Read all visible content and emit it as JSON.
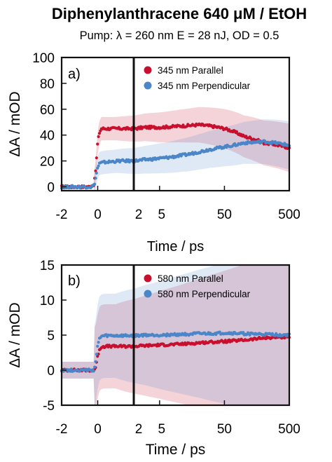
{
  "figure": {
    "title": "Diphenylanthracene 640 μM / EtOH",
    "subtitle": "Pump: λ = 260 nm E = 28 nJ, OD = 0.5"
  },
  "chart_data": [
    {
      "type": "scatter",
      "panel_label": "a)",
      "xlabel": "Time / ps",
      "ylabel": "ΔA / mOD",
      "x_axis": "piecewise: linear from -2 to 2 ps, logarithmic from 2 to 500 ps",
      "x_ticks": [
        "-2",
        "0",
        "2",
        "5",
        "50",
        "500"
      ],
      "y_ticks": [
        "0",
        "20",
        "40",
        "60",
        "80",
        "100"
      ],
      "ylim": [
        -3,
        100
      ],
      "xlim": [
        -2,
        500
      ],
      "grid": false,
      "legend_position": "top-right",
      "colors": {
        "parallel": "#c8102e",
        "perpendicular": "#4a86c8"
      },
      "series": [
        {
          "name": "345 nm Parallel",
          "color": "#c8102e",
          "x": [
            -2,
            -1,
            -0.4,
            -0.2,
            -0.1,
            0,
            0.1,
            0.2,
            0.4,
            0.8,
            1.2,
            2,
            3,
            5,
            10,
            20,
            30,
            50,
            100,
            200,
            500
          ],
          "y": [
            0,
            0,
            0,
            2,
            15,
            35,
            42,
            45,
            45,
            45,
            45,
            45,
            46,
            46,
            47,
            48,
            47,
            45,
            39,
            34,
            30
          ]
        },
        {
          "name": "345 nm Perpendicular",
          "color": "#4a86c8",
          "x": [
            -2,
            -1,
            -0.4,
            -0.2,
            -0.1,
            0,
            0.1,
            0.2,
            0.4,
            0.8,
            1.2,
            2,
            3,
            5,
            10,
            20,
            30,
            50,
            100,
            200,
            500
          ],
          "y": [
            0,
            0,
            0,
            1,
            8,
            15,
            18,
            18.5,
            19,
            19.5,
            20,
            20,
            21,
            22,
            24,
            27,
            29,
            31,
            34,
            35,
            32
          ]
        }
      ]
    },
    {
      "type": "scatter",
      "panel_label": "b)",
      "xlabel": "Time / ps",
      "ylabel": "ΔA / mOD",
      "x_axis": "piecewise: linear from -2 to 2 ps, logarithmic from 2 to 500 ps",
      "x_ticks": [
        "-2",
        "0",
        "2",
        "5",
        "50",
        "500"
      ],
      "y_ticks": [
        "-5",
        "0",
        "5",
        "10",
        "15"
      ],
      "ylim": [
        -5,
        15
      ],
      "xlim": [
        -2,
        500
      ],
      "grid": false,
      "legend_position": "top-right",
      "colors": {
        "parallel": "#c8102e",
        "perpendicular": "#4a86c8"
      },
      "series": [
        {
          "name": "580 nm Parallel",
          "color": "#c8102e",
          "x": [
            -2,
            -1,
            -0.4,
            -0.2,
            -0.1,
            0,
            0.1,
            0.2,
            0.4,
            0.8,
            1.2,
            2,
            3,
            5,
            10,
            20,
            30,
            50,
            100,
            200,
            500
          ],
          "y": [
            0,
            0,
            0,
            0,
            0.5,
            2,
            3,
            3.3,
            3.4,
            3.4,
            3.4,
            3.4,
            3.5,
            3.6,
            3.7,
            3.9,
            4.0,
            4.1,
            4.3,
            4.6,
            4.8
          ]
        },
        {
          "name": "580 nm Perpendicular",
          "color": "#4a86c8",
          "x": [
            -2,
            -1,
            -0.4,
            -0.2,
            -0.1,
            0,
            0.1,
            0.2,
            0.4,
            0.8,
            1.2,
            2,
            3,
            5,
            10,
            20,
            30,
            50,
            100,
            200,
            500
          ],
          "y": [
            0,
            0,
            0,
            0,
            1.5,
            3.5,
            4.5,
            4.8,
            4.9,
            4.9,
            4.9,
            4.9,
            5.0,
            5.0,
            5.1,
            5.2,
            5.2,
            5.3,
            5.2,
            5.1,
            5.0
          ]
        }
      ]
    }
  ]
}
